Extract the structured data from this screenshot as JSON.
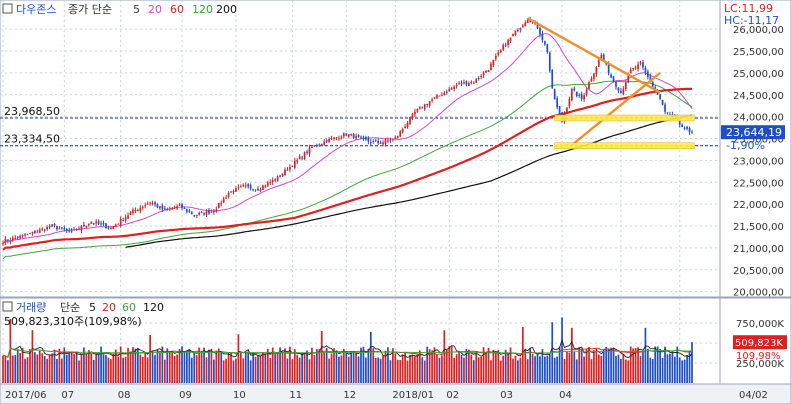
{
  "header": {
    "symbol": "다우존스",
    "ma_prefix": "종가 단순",
    "ma_periods": [
      "5",
      "20",
      "60",
      "120",
      "200"
    ],
    "ma_colors": [
      "#3a3a3a",
      "#d04ad0",
      "#3aa83a",
      "#3aa83a",
      "#111111"
    ],
    "lc_label": "LC:11,99",
    "hc_label": "HC:-11,17"
  },
  "volume_header": {
    "label": "거래량",
    "ma_prefix": "단순",
    "ma_periods": [
      "5",
      "20",
      "60",
      "120"
    ],
    "ma_colors": [
      "#222222",
      "#e02020",
      "#3aa83a",
      "#111111"
    ],
    "summary": "509,823,310주(109,98%)"
  },
  "hlines": [
    {
      "label": "23,968,50",
      "value": 23968.5
    },
    {
      "label": "23,334,50",
      "value": 23334.5
    }
  ],
  "last_price": {
    "label": "23,644,19",
    "value": 23644.19,
    "change": "-1,90%"
  },
  "last_volume": {
    "label": "509,823K",
    "pct": "109,98%",
    "value": 509823
  },
  "x_axis": [
    "2017/06",
    "07",
    "08",
    "09",
    "10",
    "11",
    "12",
    "2018/01",
    "02",
    "03",
    "04",
    "04/02"
  ],
  "y_axis_labels": [
    "26,000,00",
    "25,500,00",
    "25,000,00",
    "24,500,00",
    "24,000,00",
    "23,500,00",
    "23,000,00",
    "22,500,00",
    "22,000,00",
    "21,500,00",
    "21,000,00",
    "20,500,00",
    "20,000,00"
  ],
  "volume_axis_labels": [
    "750,000K",
    "500,000K",
    "250,000K"
  ],
  "colors": {
    "up": "#e02020",
    "down": "#1f4fc8",
    "orange": "#f0902a",
    "yellow": "#ffe84a",
    "ma20": "#d04ad0",
    "ma60": "#3aa83a",
    "ma120": "#e02020",
    "ma200": "#111111"
  },
  "chart_data": {
    "type": "candlestick",
    "y_range": [
      19900,
      26300
    ],
    "volume_range": [
      0,
      850000
    ],
    "x_labels": [
      "2017/06",
      "07",
      "08",
      "09",
      "10",
      "11",
      "12",
      "2018/01",
      "02",
      "03",
      "04",
      "04/02"
    ],
    "price_path": [
      [
        0,
        21150
      ],
      [
        10,
        21300
      ],
      [
        20,
        21500
      ],
      [
        28,
        21350
      ],
      [
        36,
        21600
      ],
      [
        44,
        21450
      ],
      [
        52,
        21800
      ],
      [
        60,
        22050
      ],
      [
        66,
        21850
      ],
      [
        72,
        21950
      ],
      [
        78,
        21750
      ],
      [
        86,
        21850
      ],
      [
        92,
        22250
      ],
      [
        98,
        22400
      ],
      [
        104,
        22350
      ],
      [
        112,
        22600
      ],
      [
        120,
        23000
      ],
      [
        126,
        23300
      ],
      [
        132,
        23450
      ],
      [
        140,
        23600
      ],
      [
        148,
        23450
      ],
      [
        154,
        23400
      ],
      [
        160,
        23500
      ],
      [
        168,
        24100
      ],
      [
        174,
        24350
      ],
      [
        180,
        24550
      ],
      [
        186,
        24750
      ],
      [
        192,
        24800
      ],
      [
        198,
        25100
      ],
      [
        204,
        25600
      ],
      [
        210,
        26000
      ],
      [
        214,
        26250
      ],
      [
        218,
        26050
      ],
      [
        222,
        25500
      ],
      [
        224,
        24600
      ],
      [
        226,
        24200
      ],
      [
        228,
        23900
      ],
      [
        232,
        24600
      ],
      [
        236,
        24400
      ],
      [
        240,
        24900
      ],
      [
        244,
        25400
      ],
      [
        248,
        24900
      ],
      [
        252,
        24550
      ],
      [
        256,
        25050
      ],
      [
        260,
        25200
      ],
      [
        264,
        24800
      ],
      [
        268,
        24400
      ],
      [
        270,
        24100
      ],
      [
        274,
        23950
      ],
      [
        278,
        23700
      ],
      [
        281,
        23644
      ]
    ],
    "volume_spikes": [
      [
        3,
        800000
      ],
      [
        12,
        660000
      ],
      [
        60,
        600000
      ],
      [
        96,
        610000
      ],
      [
        130,
        650000
      ],
      [
        150,
        640000
      ],
      [
        180,
        660000
      ],
      [
        212,
        700000
      ],
      [
        224,
        760000
      ],
      [
        228,
        820000
      ],
      [
        232,
        690000
      ],
      [
        262,
        690000
      ]
    ],
    "ma_periods": [
      5,
      20,
      60,
      120,
      200
    ],
    "ma200_start_index": 50,
    "annotations": [
      {
        "type": "trend-line",
        "color": "orange",
        "from": [
          214,
          26250
        ],
        "to": [
          268,
          24550
        ]
      },
      {
        "type": "trend-line",
        "color": "orange",
        "from": [
          232,
          23350
        ],
        "to": [
          268,
          25000
        ]
      },
      {
        "type": "band",
        "color": "yellow",
        "from": 225,
        "to": 282,
        "value": 23968.5
      },
      {
        "type": "band",
        "color": "yellow",
        "from": 225,
        "to": 282,
        "value": 23334.5
      }
    ]
  }
}
